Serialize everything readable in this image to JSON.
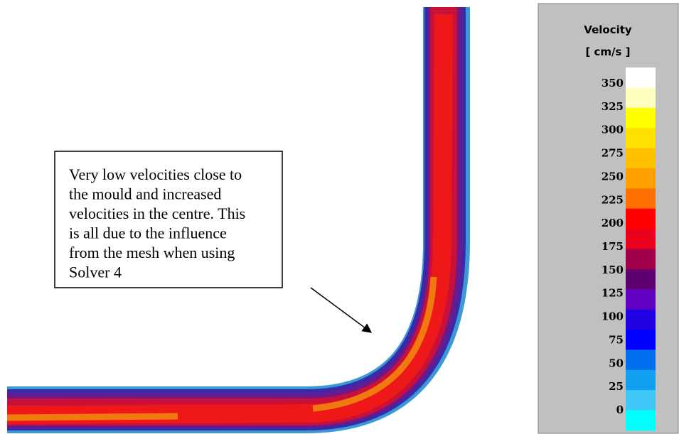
{
  "annotation": {
    "lines": [
      "Very low velocities close to",
      "the mould and increased",
      "velocities in the centre. This",
      "is all due to the influence",
      "from the mesh when using",
      "Solver 4"
    ]
  },
  "legend": {
    "title": "Velocity",
    "unit": "[ cm/s ]",
    "labels": [
      350,
      325,
      300,
      275,
      250,
      225,
      200,
      175,
      150,
      125,
      100,
      75,
      50,
      25,
      0
    ]
  }
}
